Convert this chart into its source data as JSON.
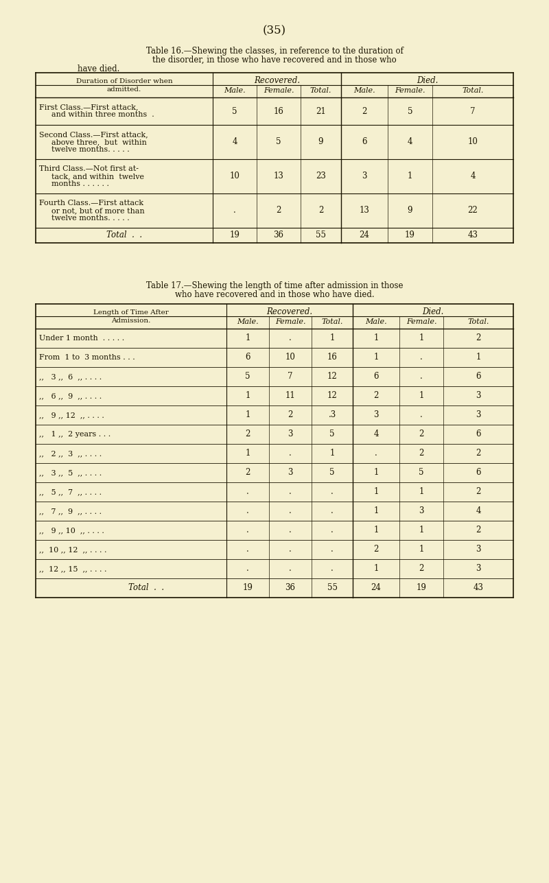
{
  "bg_color": "#f5f0d0",
  "page_number": "(35)",
  "table16": {
    "title_line1": "Table 16.—Shewing the classes, in reference to the duration of",
    "title_line2": "the disorder, in those who have recovered and in those who",
    "title_line3": "have died.",
    "rows": [
      {
        "label_lines": [
          "First Class.—First attack,",
          "and within three months  ."
        ],
        "rec_male": "5",
        "rec_female": "16",
        "rec_total": "21",
        "died_male": "2",
        "died_female": "5",
        "died_total": "7"
      },
      {
        "label_lines": [
          "Second Class.—First attack,",
          "above three,  but  within",
          "twelve months. . . . ."
        ],
        "rec_male": "4",
        "rec_female": "5",
        "rec_total": "9",
        "died_male": "6",
        "died_female": "4",
        "died_total": "10"
      },
      {
        "label_lines": [
          "Third Class.—Not first at-",
          "tack, and within  twelve",
          "months . . . . . ."
        ],
        "rec_male": "10",
        "rec_female": "13",
        "rec_total": "23",
        "died_male": "3",
        "died_female": "1",
        "died_total": "4"
      },
      {
        "label_lines": [
          "Fourth Class.—First attack",
          "or not, but of more than",
          "twelve months. . . . ."
        ],
        "rec_male": ".",
        "rec_female": "2",
        "rec_total": "2",
        "died_male": "13",
        "died_female": "9",
        "died_total": "22"
      },
      {
        "label_lines": [
          "Total  .  ."
        ],
        "rec_male": "19",
        "rec_female": "36",
        "rec_total": "55",
        "died_male": "24",
        "died_female": "19",
        "died_total": "43"
      }
    ]
  },
  "table17": {
    "title_line1": "Table 17.—Shewing the length of time after admission in those",
    "title_line2": "who have recovered and in those who have died.",
    "rows": [
      {
        "label": "Under 1 month  . . . . .",
        "rec_male": "1",
        "rec_female": ".",
        "rec_total": "1",
        "died_male": "1",
        "died_female": "1",
        "died_total": "2"
      },
      {
        "label": "From  1 to  3 months . . .",
        "rec_male": "6",
        "rec_female": "10",
        "rec_total": "16",
        "died_male": "1",
        "died_female": ".",
        "died_total": "1"
      },
      {
        "label": ",,   3 ,,  6  ,, . . . .",
        "rec_male": "5",
        "rec_female": "7",
        "rec_total": "12",
        "died_male": "6",
        "died_female": ".",
        "died_total": "6"
      },
      {
        "label": ",,   6 ,,  9  ,, . . . .",
        "rec_male": "1",
        "rec_female": "11",
        "rec_total": "12",
        "died_male": "2",
        "died_female": "1",
        "died_total": "3"
      },
      {
        "label": ",,   9 ,, 12  ,, . . . .",
        "rec_male": "1",
        "rec_female": "2",
        "rec_total": ".3",
        "died_male": "3",
        "died_female": ".",
        "died_total": "3"
      },
      {
        "label": ",,   1 ,,  2 years . . .",
        "rec_male": "2",
        "rec_female": "3",
        "rec_total": "5",
        "died_male": "4",
        "died_female": "2",
        "died_total": "6"
      },
      {
        "label": ",,   2 ,,  3  ,, . . . .",
        "rec_male": "1",
        "rec_female": ".",
        "rec_total": "1",
        "died_male": ".",
        "died_female": "2",
        "died_total": "2"
      },
      {
        "label": ",,   3 ,,  5  ,, . . . .",
        "rec_male": "2",
        "rec_female": "3",
        "rec_total": "5",
        "died_male": "1",
        "died_female": "5",
        "died_total": "6"
      },
      {
        "label": ",,   5 ,,  7  ,, . . . .",
        "rec_male": ".",
        "rec_female": ".",
        "rec_total": ".",
        "died_male": "1",
        "died_female": "1",
        "died_total": "2"
      },
      {
        "label": ",,   7 ,,  9  ,, . . . .",
        "rec_male": ".",
        "rec_female": ".",
        "rec_total": ".",
        "died_male": "1",
        "died_female": "3",
        "died_total": "4"
      },
      {
        "label": ",,   9 ,, 10  ,, . . . .",
        "rec_male": ".",
        "rec_female": ".",
        "rec_total": ".",
        "died_male": "1",
        "died_female": "1",
        "died_total": "2"
      },
      {
        "label": ",,  10 ,, 12  ,, . . . .",
        "rec_male": ".",
        "rec_female": ".",
        "rec_total": ".",
        "died_male": "2",
        "died_female": "1",
        "died_total": "3"
      },
      {
        "label": ",,  12 ,, 15  ,, . . . .",
        "rec_male": ".",
        "rec_female": ".",
        "rec_total": ".",
        "died_male": "1",
        "died_female": "2",
        "died_total": "3"
      },
      {
        "label": "            Total  .  .",
        "rec_male": "19",
        "rec_female": "36",
        "rec_total": "55",
        "died_male": "24",
        "died_female": "19",
        "died_total": "43"
      }
    ]
  }
}
